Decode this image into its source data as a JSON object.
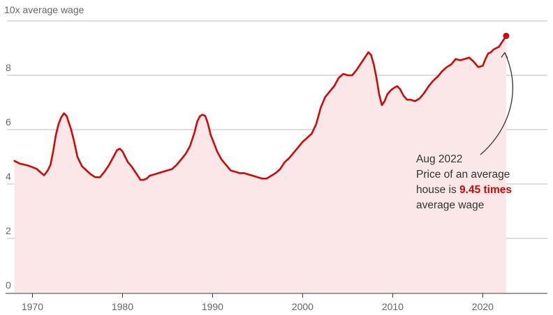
{
  "chart_data": {
    "type": "area",
    "y_axis_title": "10x average wage",
    "y_ticks": [
      0,
      2,
      4,
      6,
      8
    ],
    "x_ticks": [
      "1970",
      "1980",
      "1990",
      "2000",
      "2010",
      "2020"
    ],
    "xlim": [
      1966.4,
      2027.8
    ],
    "ylim": [
      0,
      10
    ],
    "grid": true,
    "colors": {
      "line": "#cc0a0a",
      "area": "#fbe7e8",
      "grid": "#bbbbbb",
      "axis": "#333333",
      "highlight": "#cc0a0a",
      "arrow": "#333333"
    },
    "series": [
      {
        "x": [
          1968.0,
          1968.3,
          1968.6,
          1969.0,
          1969.5,
          1970.0,
          1970.5,
          1971.0,
          1971.3,
          1971.7,
          1972.0,
          1972.3,
          1972.6,
          1972.9,
          1973.2,
          1973.5,
          1973.8,
          1974.0,
          1974.3,
          1974.6,
          1975.0,
          1975.5,
          1976.0,
          1976.5,
          1977.0,
          1977.5,
          1978.0,
          1978.5,
          1979.0,
          1979.4,
          1979.7,
          1980.0,
          1980.3,
          1980.6,
          1981.0,
          1981.5,
          1982.0,
          1982.3,
          1982.7,
          1983.0,
          1983.5,
          1984.0,
          1984.5,
          1985.0,
          1985.5,
          1986.0,
          1986.5,
          1987.0,
          1987.5,
          1988.0,
          1988.3,
          1988.6,
          1988.9,
          1989.2,
          1989.5,
          1989.8,
          1990.1,
          1990.5,
          1991.0,
          1991.5,
          1992.0,
          1992.5,
          1993.0,
          1993.5,
          1994.0,
          1994.5,
          1995.0,
          1995.5,
          1996.0,
          1996.5,
          1997.0,
          1997.5,
          1998.0,
          1998.5,
          1999.0,
          1999.5,
          2000.0,
          2000.5,
          2001.0,
          2001.5,
          2002.0,
          2002.5,
          2003.0,
          2003.5,
          2004.0,
          2004.5,
          2005.0,
          2005.5,
          2006.0,
          2006.5,
          2007.0,
          2007.3,
          2007.6,
          2007.9,
          2008.2,
          2008.5,
          2008.8,
          2009.1,
          2009.4,
          2009.8,
          2010.2,
          2010.5,
          2010.8,
          2011.2,
          2011.6,
          2012.0,
          2012.5,
          2013.0,
          2013.5,
          2014.0,
          2014.5,
          2015.0,
          2015.5,
          2016.0,
          2016.5,
          2017.0,
          2017.5,
          2018.0,
          2018.5,
          2019.0,
          2019.5,
          2020.0,
          2020.3,
          2020.6,
          2020.9,
          2021.2,
          2021.5,
          2021.8,
          2022.1,
          2022.4,
          2022.6
        ],
        "y": [
          4.85,
          4.8,
          4.75,
          4.72,
          4.68,
          4.62,
          4.55,
          4.4,
          4.32,
          4.5,
          4.7,
          5.2,
          5.8,
          6.2,
          6.45,
          6.6,
          6.5,
          6.3,
          6.0,
          5.6,
          5.0,
          4.65,
          4.5,
          4.35,
          4.25,
          4.25,
          4.45,
          4.7,
          5.0,
          5.25,
          5.3,
          5.2,
          5.0,
          4.8,
          4.65,
          4.4,
          4.15,
          4.15,
          4.2,
          4.3,
          4.35,
          4.4,
          4.45,
          4.5,
          4.55,
          4.7,
          4.9,
          5.1,
          5.4,
          5.9,
          6.3,
          6.5,
          6.55,
          6.5,
          6.2,
          5.8,
          5.55,
          5.2,
          4.9,
          4.7,
          4.5,
          4.45,
          4.4,
          4.4,
          4.35,
          4.3,
          4.25,
          4.2,
          4.2,
          4.3,
          4.4,
          4.55,
          4.8,
          4.95,
          5.15,
          5.35,
          5.55,
          5.7,
          5.85,
          6.2,
          6.8,
          7.2,
          7.4,
          7.6,
          7.9,
          8.05,
          8.0,
          8.0,
          8.2,
          8.45,
          8.7,
          8.85,
          8.75,
          8.4,
          7.9,
          7.3,
          6.9,
          7.05,
          7.3,
          7.45,
          7.55,
          7.6,
          7.5,
          7.25,
          7.1,
          7.1,
          7.05,
          7.15,
          7.35,
          7.6,
          7.8,
          7.95,
          8.15,
          8.3,
          8.4,
          8.6,
          8.55,
          8.6,
          8.65,
          8.5,
          8.3,
          8.35,
          8.6,
          8.8,
          8.85,
          8.95,
          9.0,
          9.05,
          9.2,
          9.35,
          9.45
        ]
      }
    ],
    "annotation": {
      "line1": "Aug 2022",
      "line2": "Price of an average",
      "line3_before": "house is ",
      "line3_highlight": "9.45 times",
      "line4": "average wage",
      "point": {
        "x": 2022.6,
        "y": 9.45
      }
    }
  }
}
